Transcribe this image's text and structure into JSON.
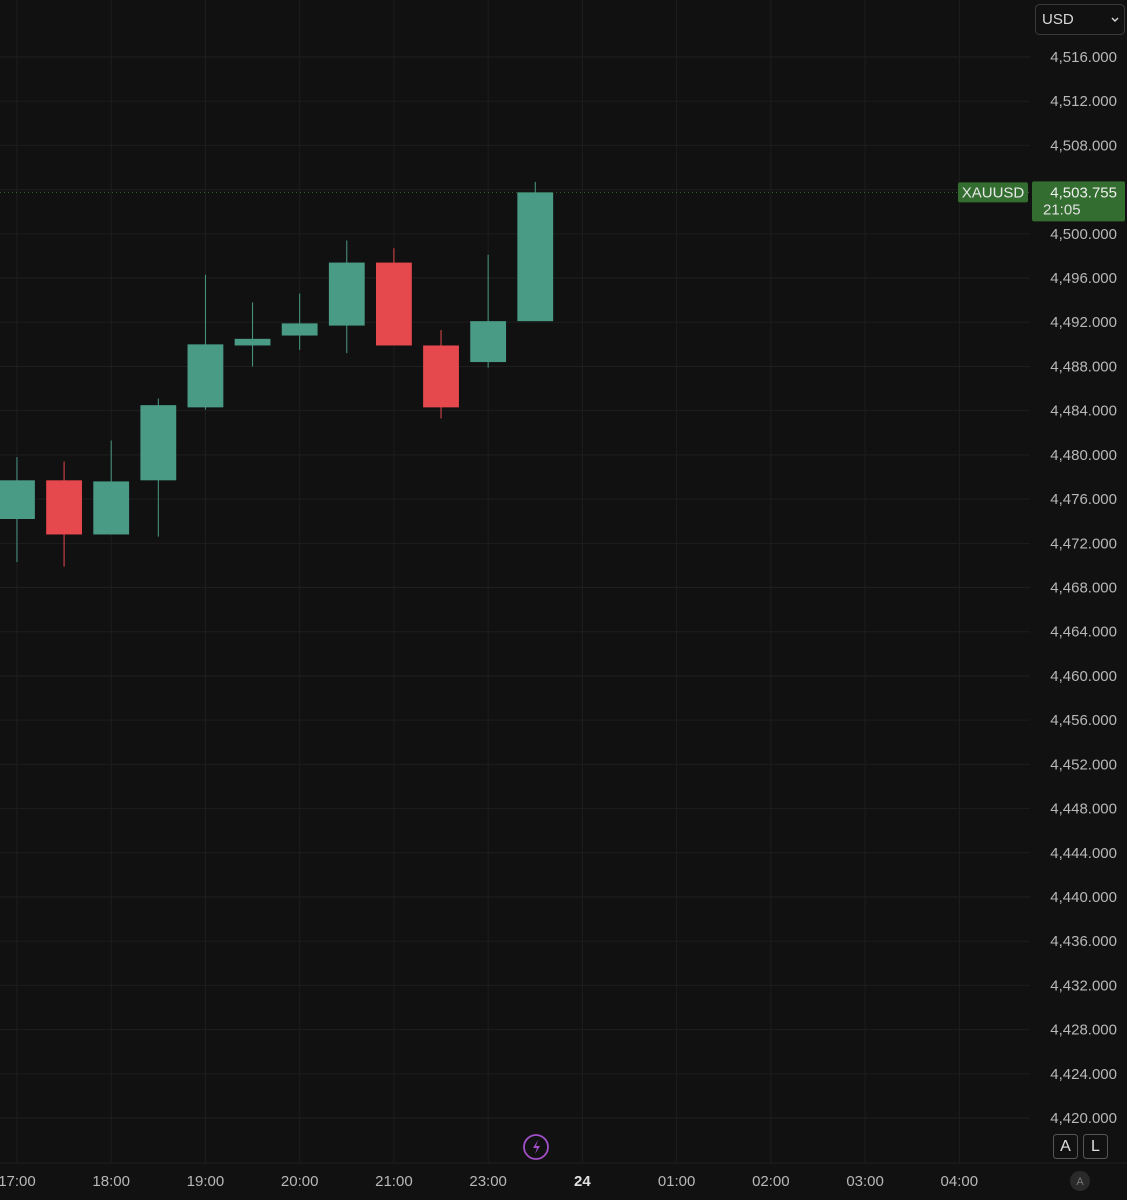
{
  "chart_data": {
    "type": "candlestick",
    "x": [
      0,
      1,
      2,
      3,
      4,
      5,
      6,
      7,
      8,
      9,
      10,
      11
    ],
    "series": [
      {
        "name": "XAUUSD",
        "up_color": "#4a9b86",
        "down_color": "#e5484d",
        "open": [
          4474.2,
          4477.7,
          4472.8,
          4477.7,
          4484.3,
          4489.9,
          4490.8,
          4491.7,
          4497.4,
          4489.9,
          4488.4,
          4492.1
        ],
        "high": [
          4479.8,
          4479.4,
          4481.3,
          4485.1,
          4496.3,
          4493.8,
          4494.6,
          4499.4,
          4498.7,
          4491.3,
          4498.1,
          4504.7
        ],
        "low": [
          4470.3,
          4469.9,
          4472.8,
          4472.6,
          4484.1,
          4488.0,
          4489.5,
          4489.2,
          4489.9,
          4483.3,
          4487.9,
          4492.1
        ],
        "close": [
          4477.7,
          4472.8,
          4477.6,
          4484.5,
          4490.0,
          4490.5,
          4491.9,
          4497.4,
          4489.9,
          4484.3,
          4492.1,
          4503.755
        ]
      }
    ],
    "xlim": [
      -0.36,
      21.5
    ],
    "xticks": [
      {
        "value": 0,
        "label": "17:00"
      },
      {
        "value": 2,
        "label": "18:00"
      },
      {
        "value": 4,
        "label": "19:00"
      },
      {
        "value": 6,
        "label": "20:00"
      },
      {
        "value": 8,
        "label": "21:00"
      },
      {
        "value": 10,
        "label": "23:00"
      },
      {
        "value": 12,
        "label": "24",
        "bold": true
      },
      {
        "value": 14,
        "label": "01:00"
      },
      {
        "value": 16,
        "label": "02:00"
      },
      {
        "value": 18,
        "label": "03:00"
      },
      {
        "value": 20,
        "label": "04:00"
      }
    ],
    "ylim": [
      4417,
      4521
    ],
    "yticks": [
      {
        "value": 4420,
        "label": "4,420.000"
      },
      {
        "value": 4424,
        "label": "4,424.000"
      },
      {
        "value": 4428,
        "label": "4,428.000"
      },
      {
        "value": 4432,
        "label": "4,432.000"
      },
      {
        "value": 4436,
        "label": "4,436.000"
      },
      {
        "value": 4440,
        "label": "4,440.000"
      },
      {
        "value": 4444,
        "label": "4,444.000"
      },
      {
        "value": 4448,
        "label": "4,448.000"
      },
      {
        "value": 4452,
        "label": "4,452.000"
      },
      {
        "value": 4456,
        "label": "4,456.000"
      },
      {
        "value": 4460,
        "label": "4,460.000"
      },
      {
        "value": 4464,
        "label": "4,464.000"
      },
      {
        "value": 4468,
        "label": "4,468.000"
      },
      {
        "value": 4472,
        "label": "4,472.000"
      },
      {
        "value": 4476,
        "label": "4,476.000"
      },
      {
        "value": 4480,
        "label": "4,480.000"
      },
      {
        "value": 4484,
        "label": "4,484.000"
      },
      {
        "value": 4488,
        "label": "4,488.000"
      },
      {
        "value": 4492,
        "label": "4,492.000"
      },
      {
        "value": 4496,
        "label": "4,496.000"
      },
      {
        "value": 4500,
        "label": "4,500.000"
      },
      {
        "value": 4504,
        "label": "4,504.000"
      },
      {
        "value": 4508,
        "label": "4,508.000"
      },
      {
        "value": 4512,
        "label": "4,512.000"
      },
      {
        "value": 4516,
        "label": "4,516.000"
      }
    ],
    "grid": true,
    "last_price": {
      "symbol": "XAUUSD",
      "value": 4503.755,
      "label": "4,503.755",
      "countdown": "21:05",
      "color": "#336d2f"
    }
  },
  "ui": {
    "currency": "USD",
    "scale_buttons": [
      "A",
      "L"
    ],
    "time_axis_button": "A"
  }
}
